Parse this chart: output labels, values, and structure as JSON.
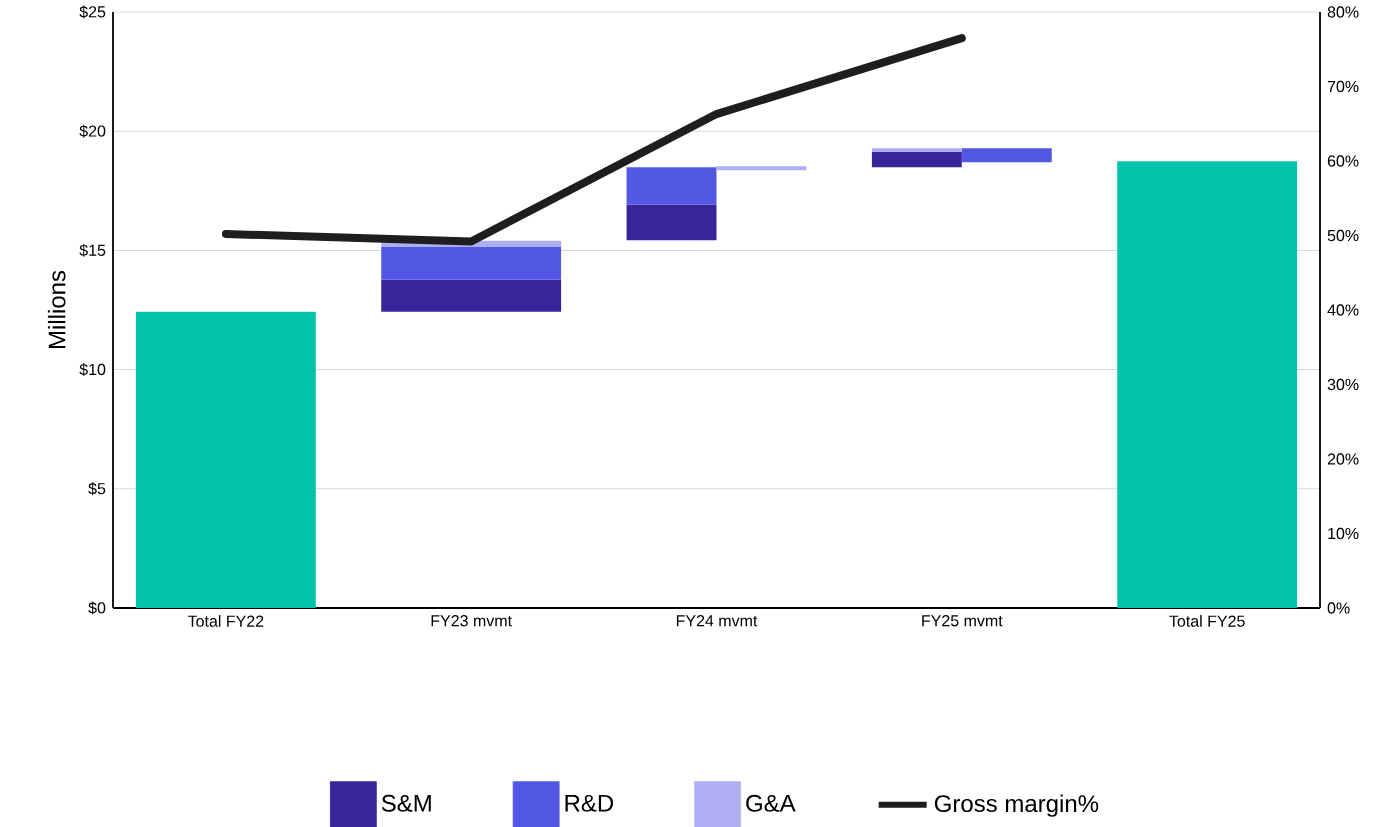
{
  "chart_data": {
    "type": "bar",
    "ylabel": "Millions",
    "categories": [
      "Total FY22",
      "FY23 mvmt",
      "FY24 mvmt",
      "FY25 mvmt",
      "Total FY25"
    ],
    "series": [
      {
        "color": "#00c4aa",
        "values": [
          12.43,
          null,
          null,
          null,
          18.74
        ]
      },
      {
        "name": "S&M",
        "color": "#38249b",
        "values": [
          null,
          1.34,
          1.5,
          0.64,
          null
        ],
        "base": [
          null,
          12.43,
          15.43,
          18.49,
          null
        ]
      },
      {
        "name": "R&D",
        "color": "#5358e4",
        "values": [
          null,
          1.39,
          1.56,
          -0.59,
          null
        ],
        "base": [
          null,
          13.77,
          16.93,
          19.29,
          null
        ]
      },
      {
        "name": "G&A",
        "color": "#aeaef2",
        "values": [
          null,
          0.25,
          -0.17,
          0.16,
          null
        ],
        "base": [
          null,
          15.16,
          18.53,
          19.13,
          null
        ]
      },
      {
        "name": "Gross margin%",
        "type": "line",
        "axis": "y2",
        "color": "#1e1e1e",
        "values": [
          50.2,
          49.2,
          66.3,
          76.5,
          null
        ]
      }
    ],
    "ylim": [
      0,
      25
    ],
    "yticks": [
      {
        "value": 0,
        "label": "$0"
      },
      {
        "value": 5,
        "label": "$5"
      },
      {
        "value": 10,
        "label": "$10"
      },
      {
        "value": 15,
        "label": "$15"
      },
      {
        "value": 20,
        "label": "$20"
      },
      {
        "value": 25,
        "label": "$25"
      }
    ],
    "y2lim": [
      0,
      80
    ],
    "y2ticks": [
      {
        "value": 0,
        "label": "0%"
      },
      {
        "value": 10,
        "label": "10%"
      },
      {
        "value": 20,
        "label": "20%"
      },
      {
        "value": 30,
        "label": "30%"
      },
      {
        "value": 40,
        "label": "40%"
      },
      {
        "value": 50,
        "label": "50%"
      },
      {
        "value": 60,
        "label": "60%"
      },
      {
        "value": 70,
        "label": "70%"
      },
      {
        "value": 80,
        "label": "80%"
      }
    ],
    "grid": "y",
    "legend": "bottom"
  }
}
